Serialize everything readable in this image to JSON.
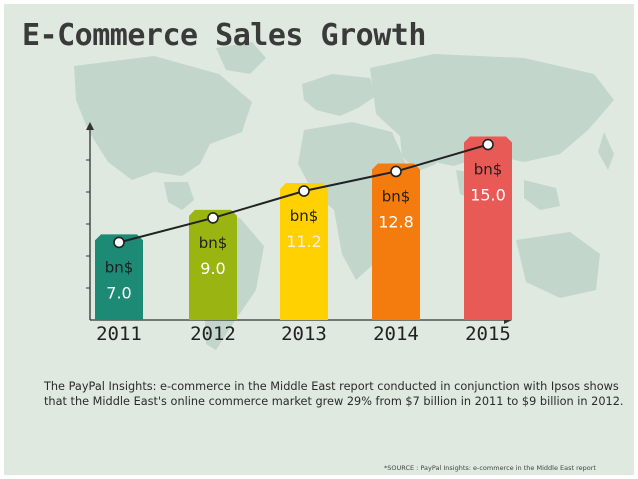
{
  "title": "E-Commerce Sales Growth",
  "caption": "The PayPal Insights: e-commerce in the Middle East report conducted in conjunction with Ipsos shows that the Middle East's online commerce market grew 29% from $7 billion in 2011 to $9 billion in 2012.",
  "source": "*SOURCE : PayPal Insights: e-commerce in the Middle East report",
  "colors": {
    "background": "#dfe9e0",
    "map": "#c3d6cb",
    "bars": [
      "#1c8a74",
      "#9ab512",
      "#ffd100",
      "#f47b0e",
      "#e85a55"
    ],
    "line": "#222222"
  },
  "chart_data": {
    "type": "bar",
    "categories": [
      "2011",
      "2012",
      "2013",
      "2014",
      "2015"
    ],
    "values": [
      7.0,
      9.0,
      11.2,
      12.8,
      15.0
    ],
    "value_labels": [
      "7.0",
      "9.0",
      "11.2",
      "12.8",
      "15.0"
    ],
    "unit_label": "bn$",
    "overlay_line": true,
    "title": "E-Commerce Sales Growth",
    "xlabel": "",
    "ylabel": "",
    "ylim": [
      0,
      16
    ],
    "grid": false
  }
}
